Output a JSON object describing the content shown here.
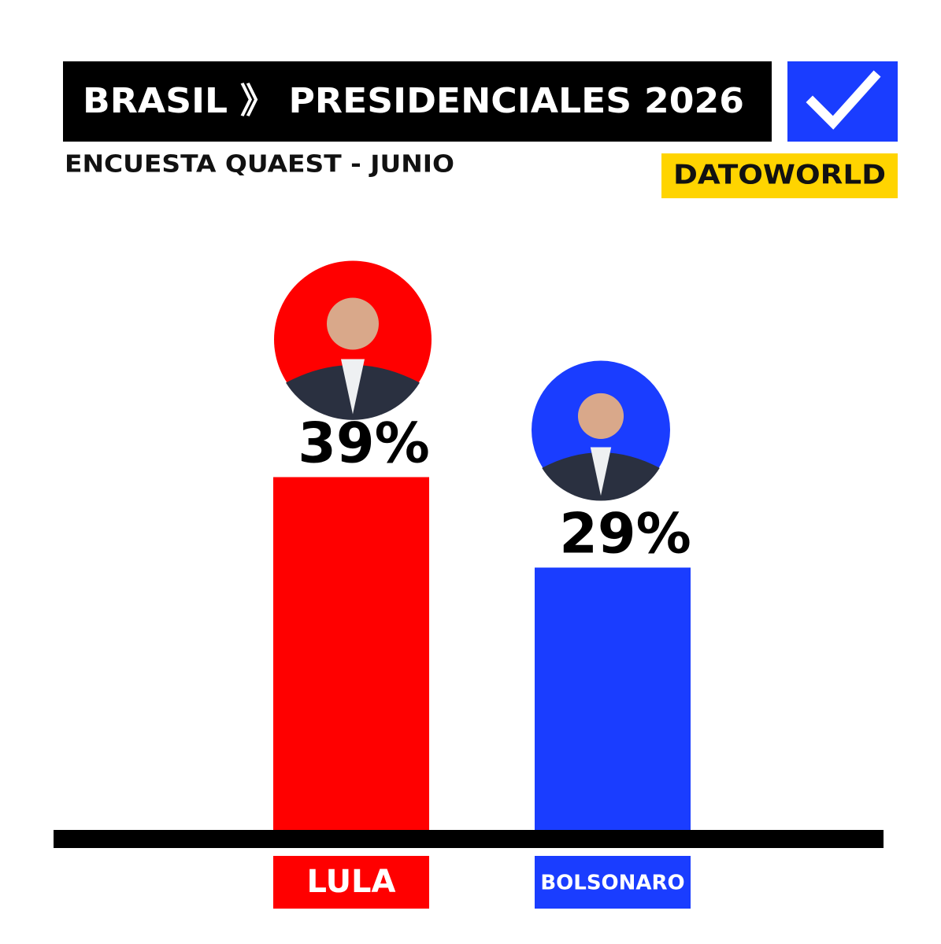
{
  "chart_data": {
    "type": "bar",
    "title": "BRASIL 》 PRESIDENCIALES 2026",
    "subtitle": "ENCUESTA QUAEST - JUNIO",
    "source": "DATOWORLD",
    "categories": [
      "LULA",
      "BOLSONARO"
    ],
    "values": [
      39,
      29
    ],
    "value_labels": [
      "39%",
      "29%"
    ],
    "colors": [
      "#ff0000",
      "#1a3dff"
    ]
  }
}
